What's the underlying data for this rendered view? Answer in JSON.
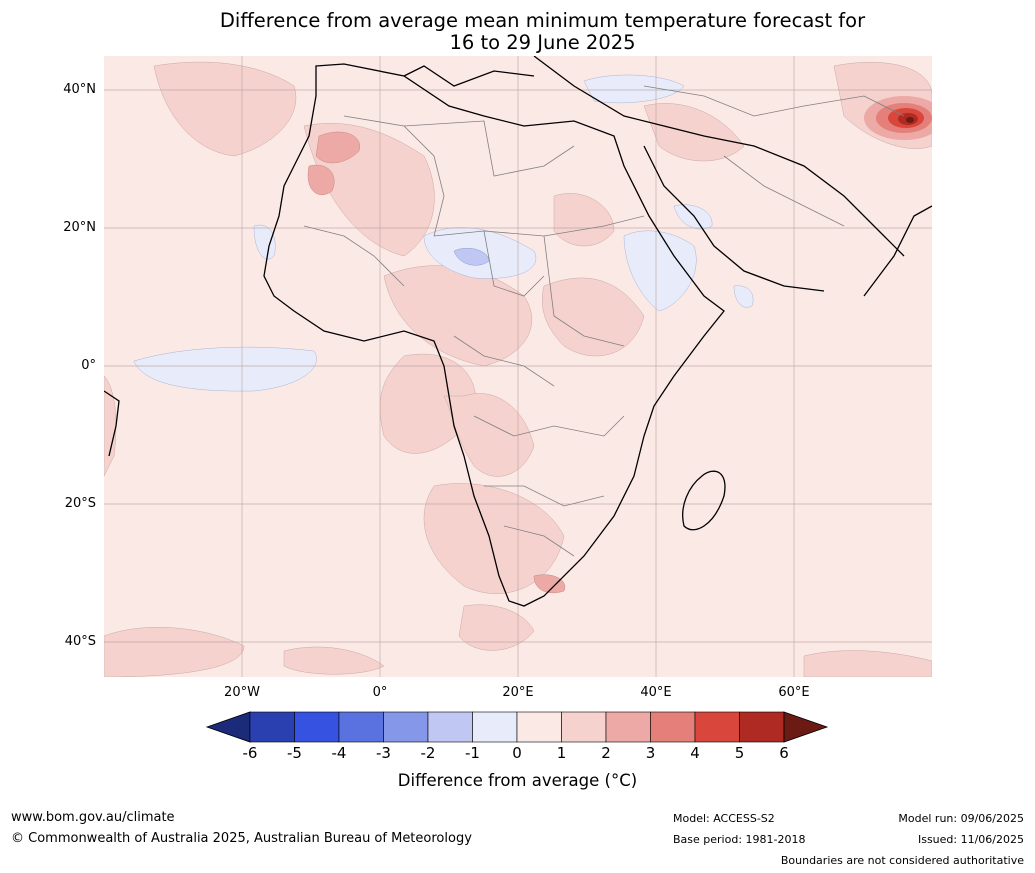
{
  "title": {
    "line1": "Difference from average mean minimum temperature forecast for",
    "line2": "16 to 29 June 2025"
  },
  "map": {
    "lat_labels": [
      "40°N",
      "20°N",
      "0°",
      "20°S",
      "40°S"
    ],
    "lon_labels": [
      "20°W",
      "0°",
      "20°E",
      "40°E",
      "60°E"
    ],
    "base_color": "#fbe9e6"
  },
  "colorbar": {
    "ticks": [
      "-6",
      "-5",
      "-4",
      "-3",
      "-2",
      "-1",
      "0",
      "1",
      "2",
      "3",
      "4",
      "5",
      "6"
    ],
    "colors": [
      "#1c2a7a",
      "#2a40b0",
      "#3553e0",
      "#5a72e0",
      "#8497e8",
      "#bfc7f2",
      "#e8ecfa",
      "#fbe9e6",
      "#f5d2ce",
      "#eca9a5",
      "#e48079",
      "#d8463c",
      "#ae2a22",
      "#6b1a14"
    ],
    "label": "Difference from average (°C)"
  },
  "footer": {
    "website": "www.bom.gov.au/climate",
    "copyright": "© Commonwealth of Australia 2025, Australian Bureau of Meteorology",
    "model": "Model: ACCESS-S2",
    "base_period": "Base period: 1981-2018",
    "model_run": "Model run: 09/06/2025",
    "issued": "Issued: 11/06/2025",
    "disclaimer": "Boundaries are not considered authoritative"
  }
}
